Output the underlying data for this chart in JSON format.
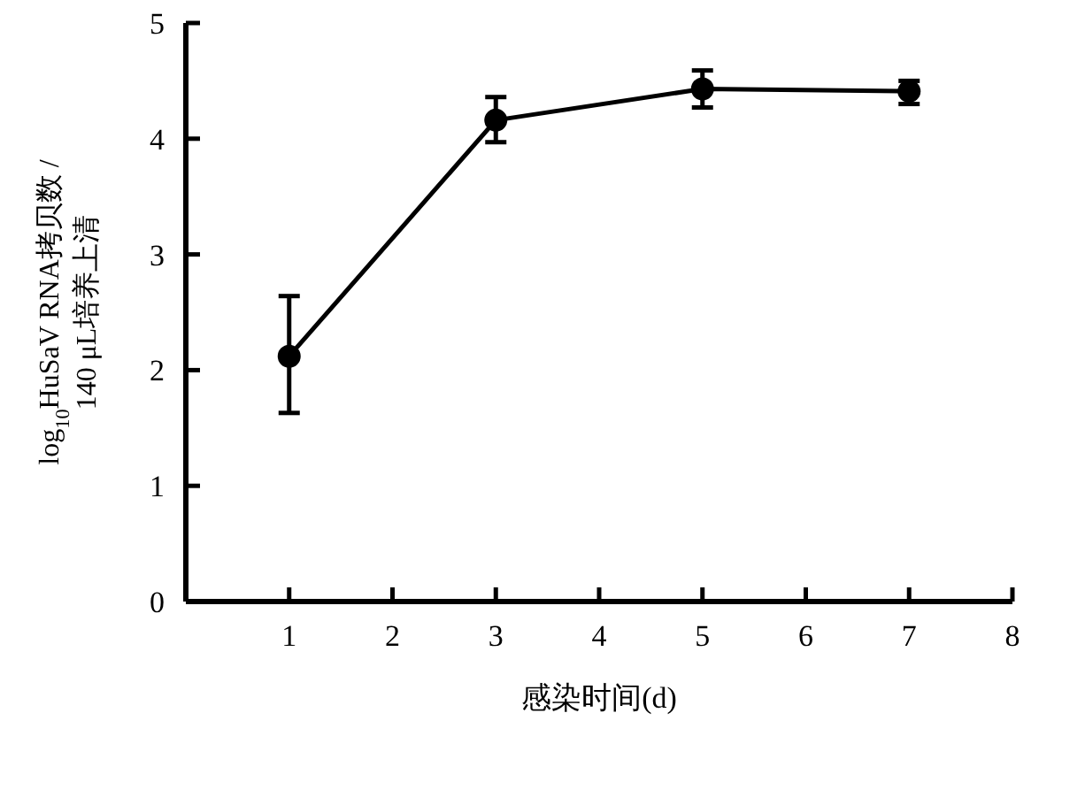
{
  "chart_data": {
    "type": "line",
    "xlabel": "感染时间(d)",
    "ylabel": "log$_{10}$HuSaV RNA拷贝数 /\n140 μL培养上清",
    "x": [
      1,
      3,
      5,
      7
    ],
    "series": [
      {
        "color": "#000000",
        "values": [
          2.12,
          4.16,
          4.43,
          4.41
        ],
        "errors": [
          [
            1.63,
            2.64
          ],
          [
            3.97,
            4.36
          ],
          [
            4.27,
            4.59
          ],
          [
            4.3,
            4.5
          ]
        ]
      }
    ],
    "xlim": [
      0,
      8
    ],
    "xticks": [
      {
        "value": 0,
        "label": null
      },
      1,
      2,
      3,
      4,
      5,
      6,
      7,
      8
    ],
    "ylim": [
      0,
      5
    ],
    "yticks": [
      0,
      1,
      2,
      3,
      4,
      5
    ],
    "grid": false,
    "marker": "circle",
    "line_style": "solid"
  }
}
